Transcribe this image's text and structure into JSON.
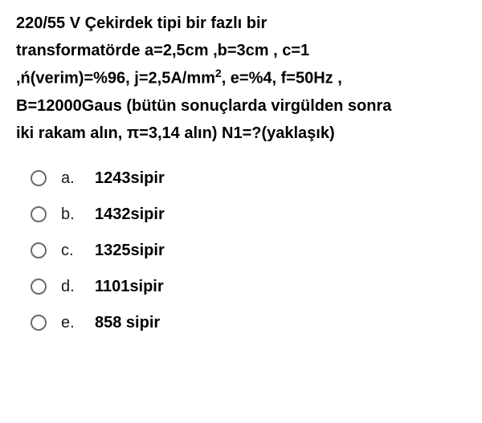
{
  "question": {
    "line1": "220/55 V  Çekirdek tipi bir fazlı bir",
    "line2": "transformatörde a=2,5cm  ,b=3cm , c=1",
    "line3_before": ",ń(verim)=%96, j=2,5A/mm",
    "line3_sup": "2",
    "line3_after": ", e=%4, f=50Hz ,",
    "line4": "B=12000Gaus (bütün sonuçlarda virgülden sonra",
    "line5": "iki rakam alın,  π=3,14 alın)  N1=?(yaklaşık)"
  },
  "options": {
    "a": {
      "letter": "a.",
      "text": "1243sipir"
    },
    "b": {
      "letter": "b.",
      "text": "1432sipir"
    },
    "c": {
      "letter": "c.",
      "text": "1325sipir"
    },
    "d": {
      "letter": "d.",
      "text": "1101sipir"
    },
    "e": {
      "letter": "e.",
      "text": "858 sipir"
    }
  },
  "styling": {
    "background_color": "#ffffff",
    "text_color": "#000000",
    "question_fontsize": 20,
    "question_fontweight": 700,
    "option_letter_fontsize": 20,
    "option_letter_fontweight": 400,
    "option_text_fontsize": 20,
    "option_text_fontweight": 700,
    "radio_border_color": "#6b6b6b",
    "radio_size": 20,
    "line_height": 1.7
  }
}
